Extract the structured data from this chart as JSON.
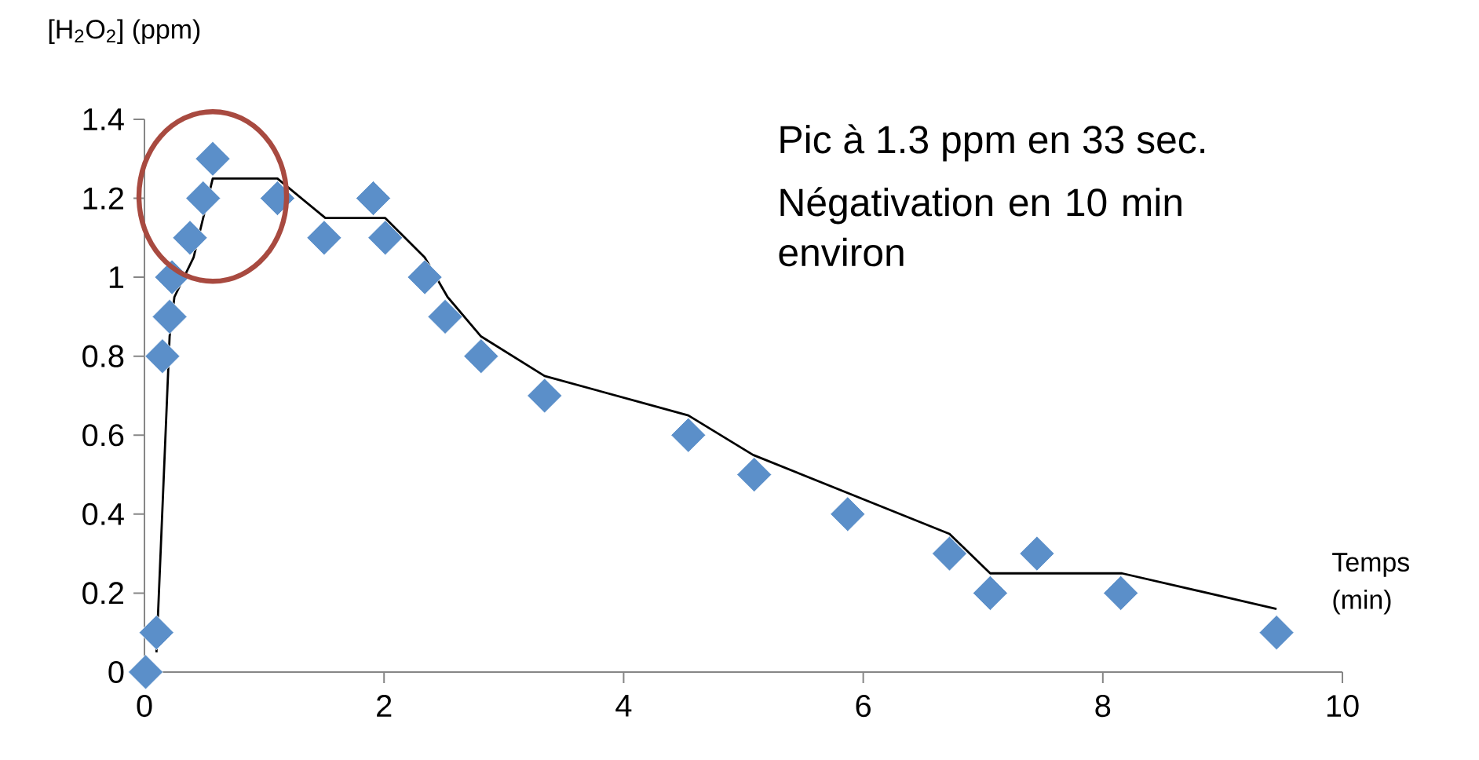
{
  "chart_data": {
    "type": "scatter",
    "ylabel": "[H$_{2}$O$_{2}$] (ppm)",
    "xlabel": "Temps (min)",
    "xlim": [
      0,
      10
    ],
    "ylim": [
      0,
      1.4
    ],
    "xticks": [
      0,
      2,
      4,
      6,
      8,
      10
    ],
    "yticks": [
      0,
      0.2,
      0.4,
      0.6,
      0.8,
      1,
      1.2,
      1.4
    ],
    "grid": false,
    "annotations": [
      "Pic à 1.3 ppm en 33 sec.",
      "Négativation en 10 min environ"
    ],
    "series": [
      {
        "marker": "diamond",
        "color": "#5b8fc9",
        "x": [
          0.01,
          0.1,
          0.15,
          0.21,
          0.23,
          0.38,
          0.49,
          0.57,
          1.11,
          1.5,
          1.91,
          2.01,
          2.34,
          2.51,
          2.81,
          3.34,
          4.54,
          5.09,
          5.87,
          6.72,
          7.06,
          7.45,
          8.15,
          9.45
        ],
        "values": [
          0,
          0.1,
          0.8,
          0.9,
          1.0,
          1.1,
          1.2,
          1.3,
          1.2,
          1.1,
          1.2,
          1.1,
          1.0,
          0.9,
          0.8,
          0.7,
          0.6,
          0.5,
          0.4,
          0.3,
          0.2,
          0.3,
          0.2,
          0.1
        ]
      },
      {
        "type": "line",
        "marker": "none",
        "line_style": "solid",
        "color": "#000000",
        "x": [
          0.1,
          0.21,
          0.25,
          0.41,
          0.57,
          1.11,
          1.51,
          2.01,
          2.34,
          2.53,
          2.81,
          3.34,
          4.54,
          5.08,
          6.72,
          7.06,
          8.16,
          9.45
        ],
        "values": [
          0.05,
          0.85,
          0.95,
          1.05,
          1.25,
          1.25,
          1.15,
          1.15,
          1.05,
          0.95,
          0.85,
          0.75,
          0.65,
          0.55,
          0.35,
          0.25,
          0.25,
          0.16
        ]
      }
    ]
  }
}
